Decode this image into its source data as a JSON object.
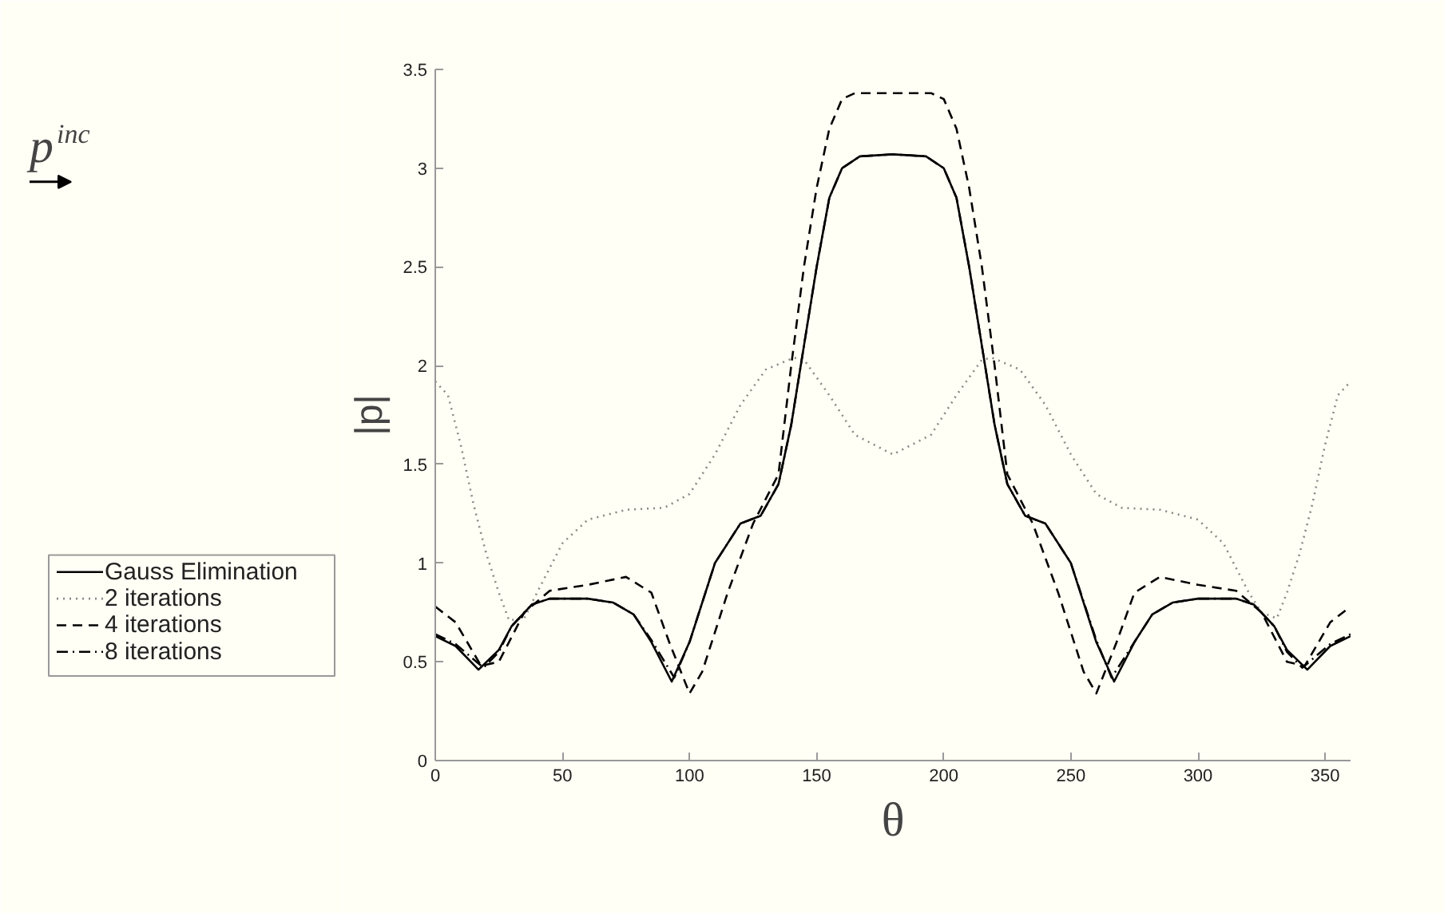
{
  "chart_data": {
    "type": "line",
    "xlabel": "θ",
    "ylabel": "|p|",
    "xlim": [
      0,
      360
    ],
    "ylim": [
      0,
      3.5
    ],
    "xticks": [
      0,
      50,
      100,
      150,
      200,
      250,
      300,
      350
    ],
    "yticks": [
      0,
      0.5,
      1,
      1.5,
      2,
      2.5,
      3,
      3.5
    ],
    "grid": false,
    "legend": "left",
    "annotations": [
      "p$^{inc}$"
    ],
    "series": [
      {
        "name": "Gauss Elimination",
        "color": "#000000",
        "line_style": "solid",
        "x": [
          0,
          8,
          17,
          25,
          30,
          38,
          45,
          60,
          70,
          78,
          85,
          93,
          100,
          110,
          120,
          128,
          135,
          140,
          145,
          150,
          155,
          160,
          167,
          180,
          193,
          200,
          205,
          210,
          215,
          220,
          225,
          232,
          240,
          250,
          260,
          267,
          275,
          282,
          290,
          300,
          315,
          322,
          330,
          335,
          343,
          352,
          360
        ],
        "values": [
          0.63,
          0.58,
          0.46,
          0.56,
          0.68,
          0.79,
          0.82,
          0.82,
          0.8,
          0.74,
          0.6,
          0.4,
          0.6,
          1.0,
          1.2,
          1.24,
          1.4,
          1.7,
          2.1,
          2.5,
          2.85,
          3.0,
          3.06,
          3.07,
          3.06,
          3.0,
          2.85,
          2.5,
          2.1,
          1.7,
          1.4,
          1.24,
          1.2,
          1.0,
          0.6,
          0.4,
          0.6,
          0.74,
          0.8,
          0.82,
          0.82,
          0.79,
          0.68,
          0.56,
          0.46,
          0.58,
          0.63
        ]
      },
      {
        "name": "2 iterations",
        "color": "#888888",
        "line_style": "dotted",
        "x": [
          0,
          5,
          10,
          15,
          20,
          25,
          29,
          35,
          40,
          50,
          60,
          75,
          90,
          100,
          110,
          120,
          130,
          141,
          145,
          155,
          165,
          180,
          195,
          205,
          215,
          219,
          230,
          240,
          250,
          260,
          270,
          285,
          300,
          310,
          320,
          325,
          331,
          335,
          340,
          345,
          350,
          355,
          360
        ],
        "values": [
          1.92,
          1.85,
          1.6,
          1.3,
          1.05,
          0.85,
          0.71,
          0.72,
          0.85,
          1.1,
          1.22,
          1.27,
          1.28,
          1.35,
          1.55,
          1.8,
          1.98,
          2.04,
          2.03,
          1.85,
          1.65,
          1.55,
          1.65,
          1.85,
          2.03,
          2.04,
          1.98,
          1.8,
          1.55,
          1.35,
          1.28,
          1.27,
          1.22,
          1.1,
          0.85,
          0.75,
          0.72,
          0.85,
          1.05,
          1.3,
          1.6,
          1.85,
          1.92
        ]
      },
      {
        "name": "4 iterations",
        "color": "#000000",
        "line_style": "dashed",
        "x": [
          0,
          8,
          18,
          25,
          35,
          45,
          60,
          75,
          85,
          92,
          100,
          105,
          115,
          125,
          135,
          140,
          145,
          150,
          155,
          160,
          165,
          180,
          195,
          200,
          205,
          210,
          215,
          220,
          225,
          235,
          245,
          255,
          260,
          268,
          275,
          285,
          300,
          315,
          325,
          335,
          342,
          352,
          360
        ],
        "values": [
          0.78,
          0.7,
          0.48,
          0.5,
          0.75,
          0.86,
          0.89,
          0.93,
          0.85,
          0.6,
          0.34,
          0.45,
          0.85,
          1.2,
          1.45,
          2.0,
          2.5,
          2.9,
          3.2,
          3.35,
          3.38,
          3.38,
          3.38,
          3.35,
          3.2,
          2.9,
          2.5,
          2.0,
          1.45,
          1.2,
          0.85,
          0.45,
          0.34,
          0.6,
          0.85,
          0.93,
          0.89,
          0.86,
          0.75,
          0.5,
          0.48,
          0.7,
          0.78
        ]
      },
      {
        "name": "8 iterations",
        "color": "#000000",
        "line_style": "dashdot",
        "x": [
          0,
          8,
          19,
          25,
          30,
          38,
          45,
          60,
          70,
          78,
          85,
          94,
          100,
          110,
          120,
          128,
          135,
          140,
          145,
          150,
          155,
          160,
          167,
          180,
          193,
          200,
          205,
          210,
          215,
          220,
          225,
          232,
          240,
          250,
          260,
          266,
          275,
          282,
          290,
          300,
          315,
          322,
          330,
          335,
          341,
          352,
          360
        ],
        "values": [
          0.64,
          0.59,
          0.47,
          0.55,
          0.68,
          0.79,
          0.82,
          0.82,
          0.8,
          0.74,
          0.61,
          0.42,
          0.6,
          1.0,
          1.2,
          1.24,
          1.4,
          1.7,
          2.1,
          2.5,
          2.85,
          3.0,
          3.06,
          3.07,
          3.06,
          3.0,
          2.85,
          2.5,
          2.1,
          1.7,
          1.4,
          1.24,
          1.2,
          1.0,
          0.61,
          0.42,
          0.6,
          0.74,
          0.8,
          0.82,
          0.82,
          0.79,
          0.68,
          0.55,
          0.47,
          0.59,
          0.64
        ]
      }
    ]
  }
}
